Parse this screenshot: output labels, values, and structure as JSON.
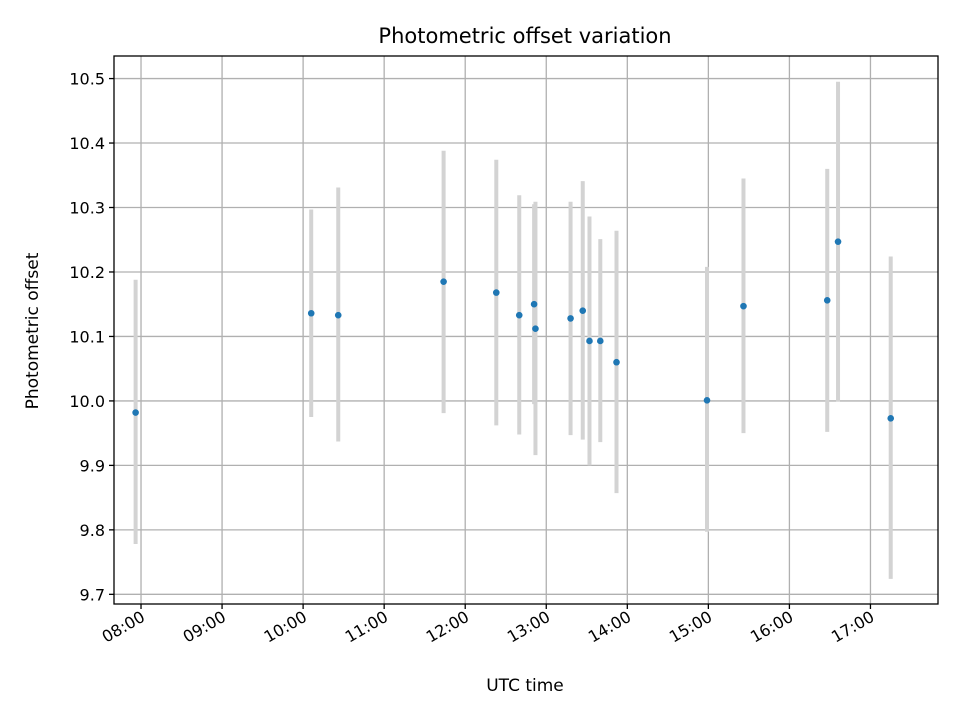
{
  "chart_data": {
    "type": "scatter",
    "title": "Photometric offset variation",
    "xlabel": "UTC time",
    "ylabel": "Photometric offset",
    "xlim": [
      "07:40",
      "17:50"
    ],
    "ylim": [
      9.685,
      10.535
    ],
    "grid": true,
    "x_ticks": [
      "08:00",
      "09:00",
      "10:00",
      "11:00",
      "12:00",
      "13:00",
      "14:00",
      "15:00",
      "16:00",
      "17:00"
    ],
    "y_ticks": [
      "9.7",
      "9.8",
      "9.9",
      "10.0",
      "10.1",
      "10.2",
      "10.3",
      "10.4",
      "10.5"
    ],
    "series": [
      {
        "color": "#1f77b4",
        "errorbar_color": "#d3d3d3",
        "points": [
          {
            "x": "07:56",
            "y": 9.982,
            "lo": 9.778,
            "hi": 10.188
          },
          {
            "x": "10:06",
            "y": 10.136,
            "lo": 9.975,
            "hi": 10.297
          },
          {
            "x": "10:26",
            "y": 10.133,
            "lo": 9.937,
            "hi": 10.331
          },
          {
            "x": "11:44",
            "y": 10.185,
            "lo": 9.981,
            "hi": 10.388
          },
          {
            "x": "12:23",
            "y": 10.168,
            "lo": 9.962,
            "hi": 10.374
          },
          {
            "x": "12:40",
            "y": 10.133,
            "lo": 9.948,
            "hi": 10.319
          },
          {
            "x": "12:51",
            "y": 10.15,
            "lo": 9.995,
            "hi": 10.305
          },
          {
            "x": "12:52",
            "y": 10.112,
            "lo": 9.916,
            "hi": 10.309
          },
          {
            "x": "13:18",
            "y": 10.128,
            "lo": 9.947,
            "hi": 10.309
          },
          {
            "x": "13:27",
            "y": 10.14,
            "lo": 9.94,
            "hi": 10.341
          },
          {
            "x": "13:32",
            "y": 10.093,
            "lo": 9.9,
            "hi": 10.286
          },
          {
            "x": "13:40",
            "y": 10.093,
            "lo": 9.936,
            "hi": 10.251
          },
          {
            "x": "13:52",
            "y": 10.06,
            "lo": 9.857,
            "hi": 10.264
          },
          {
            "x": "14:59",
            "y": 10.001,
            "lo": 9.797,
            "hi": 10.208
          },
          {
            "x": "15:26",
            "y": 10.147,
            "lo": 9.95,
            "hi": 10.345
          },
          {
            "x": "16:28",
            "y": 10.156,
            "lo": 9.952,
            "hi": 10.36
          },
          {
            "x": "16:36",
            "y": 10.247,
            "lo": 9.999,
            "hi": 10.495
          },
          {
            "x": "17:15",
            "y": 9.973,
            "lo": 9.724,
            "hi": 10.224
          }
        ]
      }
    ]
  }
}
